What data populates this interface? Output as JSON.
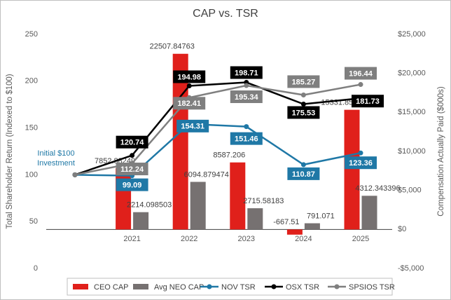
{
  "chart_data": {
    "type": "bar-line",
    "title": "CAP vs. TSR",
    "ylabel": "Total Shareholder Return (Indexed to $100)",
    "y2label": "Compensation Actually Paid ($000s)",
    "annotation": [
      "Initial $100",
      "Investment"
    ],
    "categories": [
      null,
      "2021",
      "2022",
      "2023",
      "2024",
      "2025"
    ],
    "ylim": [
      0,
      250
    ],
    "yticks": [
      0,
      50,
      100,
      150,
      200,
      250
    ],
    "y2lim": [
      -5000,
      25000
    ],
    "y2ticks": [
      {
        "value": -5000,
        "label": "-$5,000"
      },
      {
        "value": 0,
        "label": "$0"
      },
      {
        "value": 5000,
        "label": "$5,000"
      },
      {
        "value": 10000,
        "label": "$10,000"
      },
      {
        "value": 15000,
        "label": "$15,000"
      },
      {
        "value": 20000,
        "label": "$20,000"
      },
      {
        "value": 25000,
        "label": "$25,000"
      }
    ],
    "series": [
      {
        "name": "CEO CAP",
        "type": "bar",
        "axis": "y2",
        "color": "#e0201b",
        "values": [
          null,
          7852.88249,
          22507.84763,
          8587.206,
          -667.51,
          15331.85798
        ]
      },
      {
        "name": "Avg NEO CAP",
        "type": "bar",
        "axis": "y2",
        "color": "#767171",
        "values": [
          null,
          2214.098503,
          6094.879474,
          2715.58183,
          791.071,
          4312.343396
        ]
      },
      {
        "name": "NOV TSR",
        "type": "line",
        "color": "#1f78a6",
        "values": [
          100,
          99.09,
          154.31,
          151.46,
          110.87,
          123.36
        ]
      },
      {
        "name": "OSX TSR",
        "type": "line",
        "color": "#000000",
        "values": [
          100,
          120.74,
          194.98,
          198.71,
          175.53,
          181.73
        ]
      },
      {
        "name": "SPSIOS TSR",
        "type": "line",
        "color": "#7f7f7f",
        "values": [
          100,
          112.24,
          182.41,
          195.34,
          185.27,
          196.44
        ]
      }
    ]
  }
}
